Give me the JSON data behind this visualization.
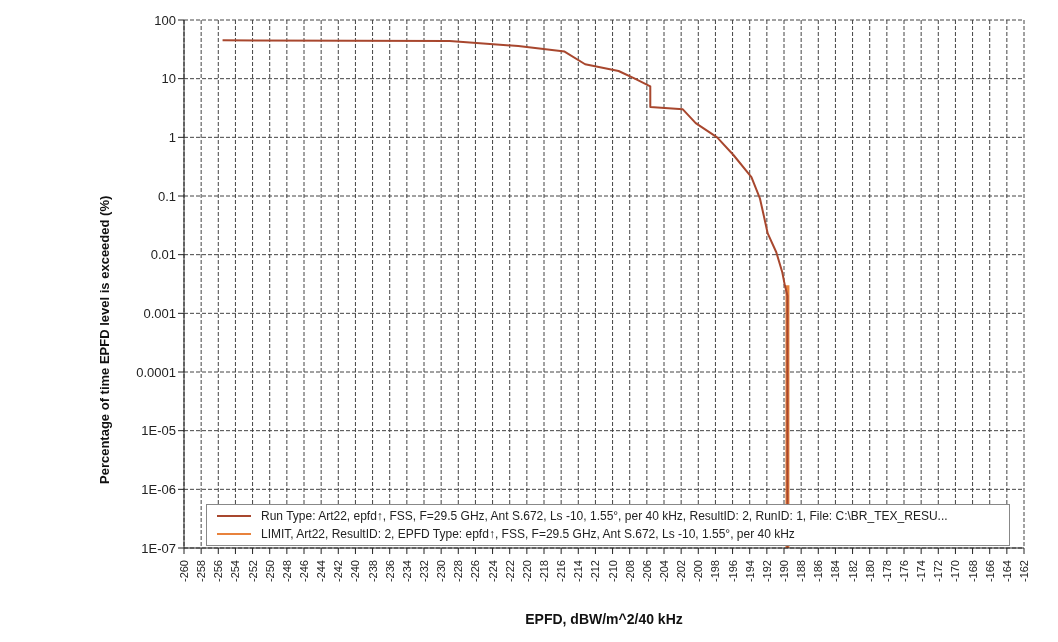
{
  "chart_data": {
    "type": "line",
    "xlabel": "EPFD, dBW/m^2/40 kHz",
    "ylabel": "Percentage of time EPFD level is exceeded (%)",
    "log": "y",
    "grid": true,
    "legend": "bottom",
    "marker": "none",
    "line_style": "solid",
    "xlim": [
      -260,
      -162
    ],
    "xticks": [
      -260,
      -258,
      -256,
      -254,
      -252,
      -250,
      -248,
      -246,
      -244,
      -242,
      -240,
      -238,
      -236,
      -234,
      -232,
      -230,
      -228,
      -226,
      -224,
      -222,
      -220,
      -218,
      -216,
      -214,
      -212,
      -210,
      -208,
      -206,
      -204,
      -202,
      -200,
      -198,
      -196,
      -194,
      -192,
      -190,
      -188,
      -186,
      -184,
      -182,
      -180,
      -178,
      -176,
      -174,
      -172,
      -170,
      -168,
      -166,
      -164,
      -162
    ],
    "ylim": [
      1e-07,
      100
    ],
    "yticks": [
      {
        "value": 1e-07,
        "label": "1E-07"
      },
      {
        "value": 1e-06,
        "label": "1E-06"
      },
      {
        "value": 1e-05,
        "label": "1E-05"
      },
      {
        "value": 0.0001,
        "label": "0.0001"
      },
      {
        "value": 0.001,
        "label": "0.001"
      },
      {
        "value": 0.01,
        "label": "0.01"
      },
      {
        "value": 0.1,
        "label": "0.1"
      },
      {
        "value": 1,
        "label": "1"
      },
      {
        "value": 10,
        "label": "10"
      },
      {
        "value": 100,
        "label": "100"
      }
    ],
    "series": [
      {
        "name": "Run Type: Art22,   epfd↑, FSS, F=29.5 GHz, Ant S.672, Ls -10, 1.55°, per 40 kHz,    ResultID: 2, RunID: 1, File: C:\\BR_TEX_RESU...",
        "color": "#a8472e",
        "x": [
          -255.5,
          -229,
          -221,
          -215.6,
          -213.2,
          -209.3,
          -207.4,
          -205.6,
          -205.6,
          -201.8,
          -200.3,
          -197.8,
          -195.9,
          -193.8,
          -192.8,
          -191.9,
          -190.9,
          -190.2,
          -189.9,
          -189.6,
          -189.6
        ],
        "values": [
          45,
          44,
          36,
          29,
          17.6,
          13.5,
          10,
          7.4,
          3.3,
          3,
          1.75,
          1,
          0.5,
          0.21,
          0.09,
          0.023,
          0.011,
          0.005,
          0.003,
          0.002,
          1e-07
        ]
      },
      {
        "name": "LIMIT, Art22, ResultID: 2, EPFD Type: epfd↑, FSS, F=29.5 GHz, Ant S.672, Ls -10, 1.55°, per 40 kHz",
        "color": "#e8823c",
        "x": [
          -189.6,
          -189.6
        ],
        "values": [
          0.003,
          1e-07
        ]
      }
    ]
  }
}
